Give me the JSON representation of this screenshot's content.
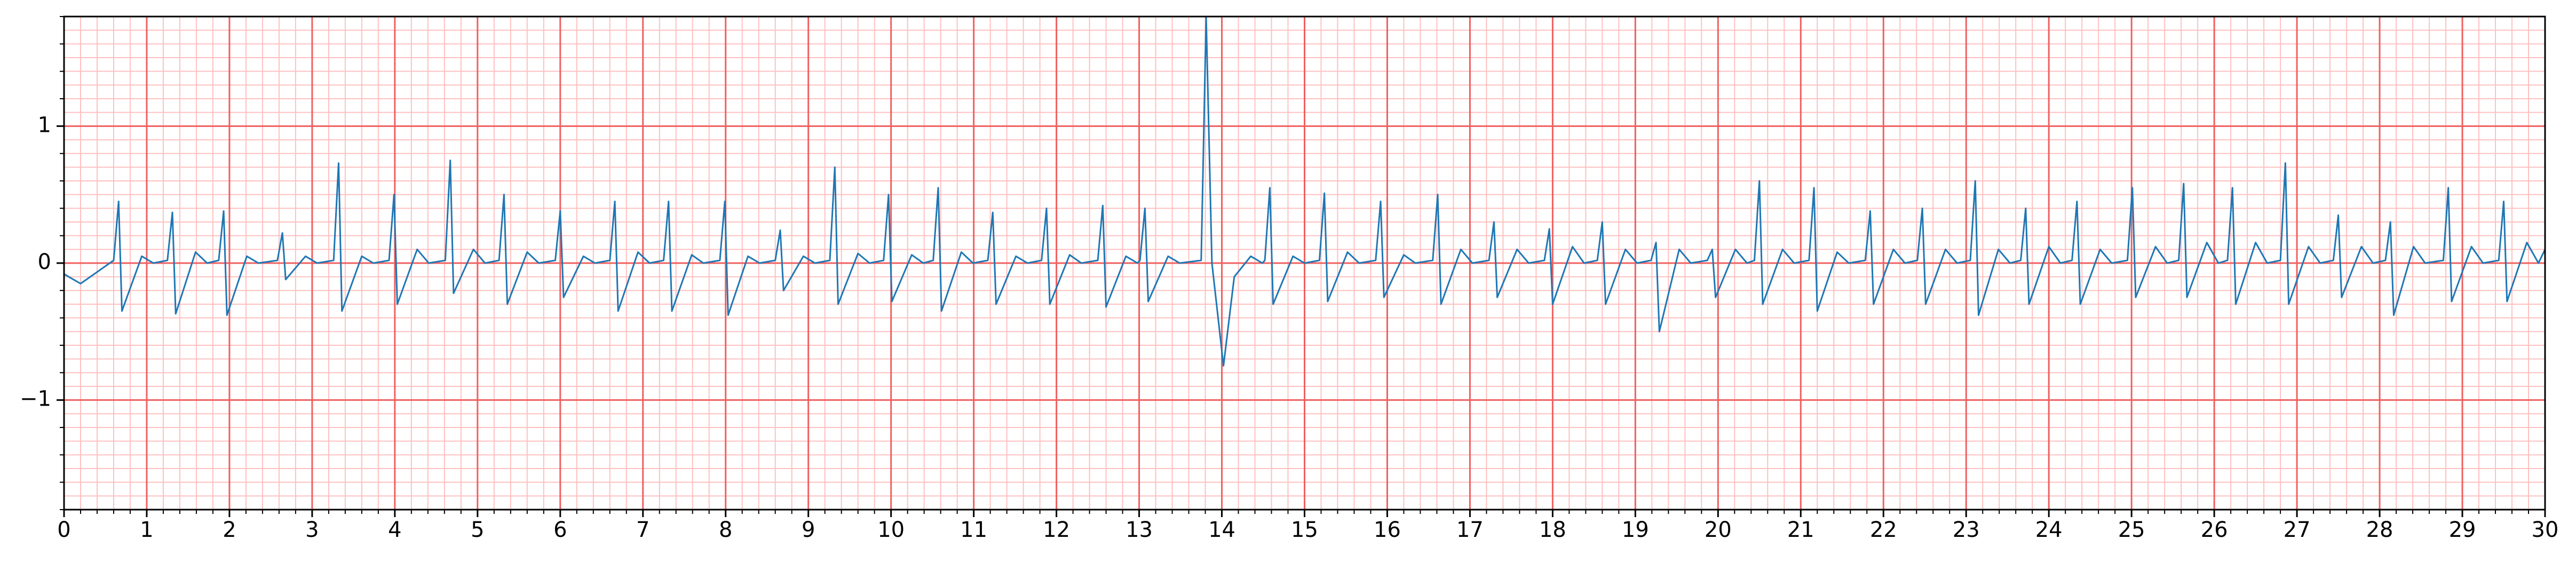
{
  "chart_data": {
    "type": "line",
    "color": "#1f77b4",
    "grid": true,
    "xlim": [
      0,
      30
    ],
    "ylim": [
      -1.8,
      1.8
    ],
    "xticks": [
      0,
      1,
      2,
      3,
      4,
      5,
      6,
      7,
      8,
      9,
      10,
      11,
      12,
      13,
      14,
      15,
      16,
      17,
      18,
      19,
      20,
      21,
      22,
      23,
      24,
      25,
      26,
      27,
      28,
      29,
      30
    ],
    "yticks": [
      {
        "value": -1,
        "label": "−1"
      },
      0,
      1
    ],
    "x": [
      0,
      0.2,
      0.6,
      0.66,
      0.7,
      0.94,
      1.08,
      1.25,
      1.31,
      1.35,
      1.59,
      1.73,
      1.87,
      1.93,
      1.97,
      2.21,
      2.35,
      2.58,
      2.64,
      2.68,
      2.92,
      3.06,
      3.26,
      3.32,
      3.36,
      3.6,
      3.74,
      3.93,
      3.99,
      4.03,
      4.27,
      4.41,
      4.61,
      4.67,
      4.71,
      4.95,
      5.09,
      5.26,
      5.32,
      5.36,
      5.6,
      5.74,
      5.94,
      6.0,
      6.04,
      6.28,
      6.42,
      6.6,
      6.66,
      6.7,
      6.94,
      7.08,
      7.25,
      7.31,
      7.35,
      7.59,
      7.73,
      7.93,
      7.99,
      8.03,
      8.27,
      8.41,
      8.6,
      8.66,
      8.7,
      8.94,
      9.08,
      9.26,
      9.32,
      9.36,
      9.6,
      9.74,
      9.91,
      9.97,
      10.01,
      10.25,
      10.39,
      10.51,
      10.57,
      10.61,
      10.85,
      10.99,
      11.17,
      11.23,
      11.27,
      11.51,
      11.65,
      11.82,
      11.88,
      11.92,
      12.16,
      12.3,
      12.5,
      12.56,
      12.6,
      12.84,
      12.98,
      13.01,
      13.07,
      13.11,
      13.35,
      13.49,
      13.75,
      13.81,
      13.88,
      14.02,
      14.15,
      14.35,
      14.49,
      14.52,
      14.58,
      14.62,
      14.86,
      15.0,
      15.18,
      15.24,
      15.28,
      15.52,
      15.66,
      15.86,
      15.92,
      15.96,
      16.2,
      16.34,
      16.55,
      16.61,
      16.65,
      16.89,
      17.03,
      17.23,
      17.29,
      17.33,
      17.57,
      17.71,
      17.9,
      17.96,
      18.0,
      18.24,
      18.38,
      18.54,
      18.6,
      18.64,
      18.88,
      19.02,
      19.19,
      19.25,
      19.29,
      19.53,
      19.67,
      19.87,
      19.93,
      19.97,
      20.21,
      20.35,
      20.44,
      20.5,
      20.54,
      20.78,
      20.92,
      21.1,
      21.16,
      21.2,
      21.44,
      21.58,
      21.78,
      21.84,
      21.88,
      22.12,
      22.26,
      22.41,
      22.47,
      22.51,
      22.75,
      22.89,
      23.05,
      23.11,
      23.15,
      23.39,
      23.53,
      23.66,
      23.72,
      23.76,
      24.0,
      24.14,
      24.28,
      24.34,
      24.38,
      24.62,
      24.76,
      24.95,
      25.01,
      25.05,
      25.29,
      25.43,
      25.57,
      25.63,
      25.67,
      25.91,
      26.05,
      26.16,
      26.22,
      26.26,
      26.5,
      26.64,
      26.8,
      26.86,
      26.9,
      27.14,
      27.28,
      27.44,
      27.5,
      27.54,
      27.78,
      27.92,
      28.07,
      28.13,
      28.17,
      28.41,
      28.55,
      28.77,
      28.83,
      28.87,
      29.11,
      29.25,
      29.44,
      29.5,
      29.54,
      29.78,
      29.92,
      30.0
    ],
    "values": [
      -0.08,
      -0.15,
      0.02,
      0.45,
      -0.35,
      0.05,
      0,
      0.02,
      0.37,
      -0.37,
      0.08,
      0,
      0.02,
      0.38,
      -0.38,
      0.05,
      0,
      0.02,
      0.22,
      -0.12,
      0.05,
      0,
      0.02,
      0.73,
      -0.35,
      0.05,
      0,
      0.02,
      0.5,
      -0.3,
      0.1,
      0,
      0.02,
      0.75,
      -0.22,
      0.1,
      0,
      0.02,
      0.5,
      -0.3,
      0.08,
      0,
      0.02,
      0.38,
      -0.25,
      0.05,
      0,
      0.02,
      0.45,
      -0.35,
      0.08,
      0,
      0.02,
      0.45,
      -0.35,
      0.06,
      0,
      0.02,
      0.45,
      -0.38,
      0.05,
      0,
      0.02,
      0.24,
      -0.2,
      0.05,
      0,
      0.02,
      0.7,
      -0.3,
      0.07,
      0,
      0.02,
      0.5,
      -0.28,
      0.06,
      0,
      0.02,
      0.55,
      -0.35,
      0.08,
      0,
      0.02,
      0.37,
      -0.3,
      0.05,
      0,
      0.02,
      0.4,
      -0.3,
      0.06,
      0,
      0.02,
      0.42,
      -0.32,
      0.05,
      0,
      0.02,
      0.4,
      -0.28,
      0.05,
      0,
      0.02,
      1.8,
      0,
      -0.75,
      -0.1,
      0.05,
      0,
      0.02,
      0.55,
      -0.3,
      0.05,
      0,
      0.02,
      0.51,
      -0.28,
      0.08,
      0,
      0.02,
      0.45,
      -0.25,
      0.06,
      0,
      0.02,
      0.5,
      -0.3,
      0.1,
      0,
      0.02,
      0.3,
      -0.25,
      0.1,
      0,
      0.02,
      0.25,
      -0.3,
      0.12,
      0,
      0.02,
      0.3,
      -0.3,
      0.1,
      0,
      0.02,
      0.15,
      -0.5,
      0.1,
      0,
      0.02,
      0.1,
      -0.25,
      0.1,
      0,
      0.02,
      0.6,
      -0.3,
      0.1,
      0,
      0.02,
      0.55,
      -0.35,
      0.08,
      0,
      0.02,
      0.38,
      -0.3,
      0.1,
      0,
      0.02,
      0.4,
      -0.3,
      0.1,
      0,
      0.02,
      0.6,
      -0.38,
      0.1,
      0,
      0.02,
      0.4,
      -0.3,
      0.12,
      0,
      0.02,
      0.45,
      -0.3,
      0.1,
      0,
      0.02,
      0.55,
      -0.25,
      0.12,
      0,
      0.02,
      0.58,
      -0.25,
      0.15,
      0,
      0.02,
      0.55,
      -0.3,
      0.15,
      0,
      0.02,
      0.73,
      -0.3,
      0.12,
      0,
      0.02,
      0.35,
      -0.25,
      0.12,
      0,
      0.02,
      0.3,
      -0.38,
      0.12,
      0,
      0.02,
      0.55,
      -0.28,
      0.12,
      0,
      0.02,
      0.45,
      -0.28,
      0.15,
      0,
      0.1
    ]
  }
}
